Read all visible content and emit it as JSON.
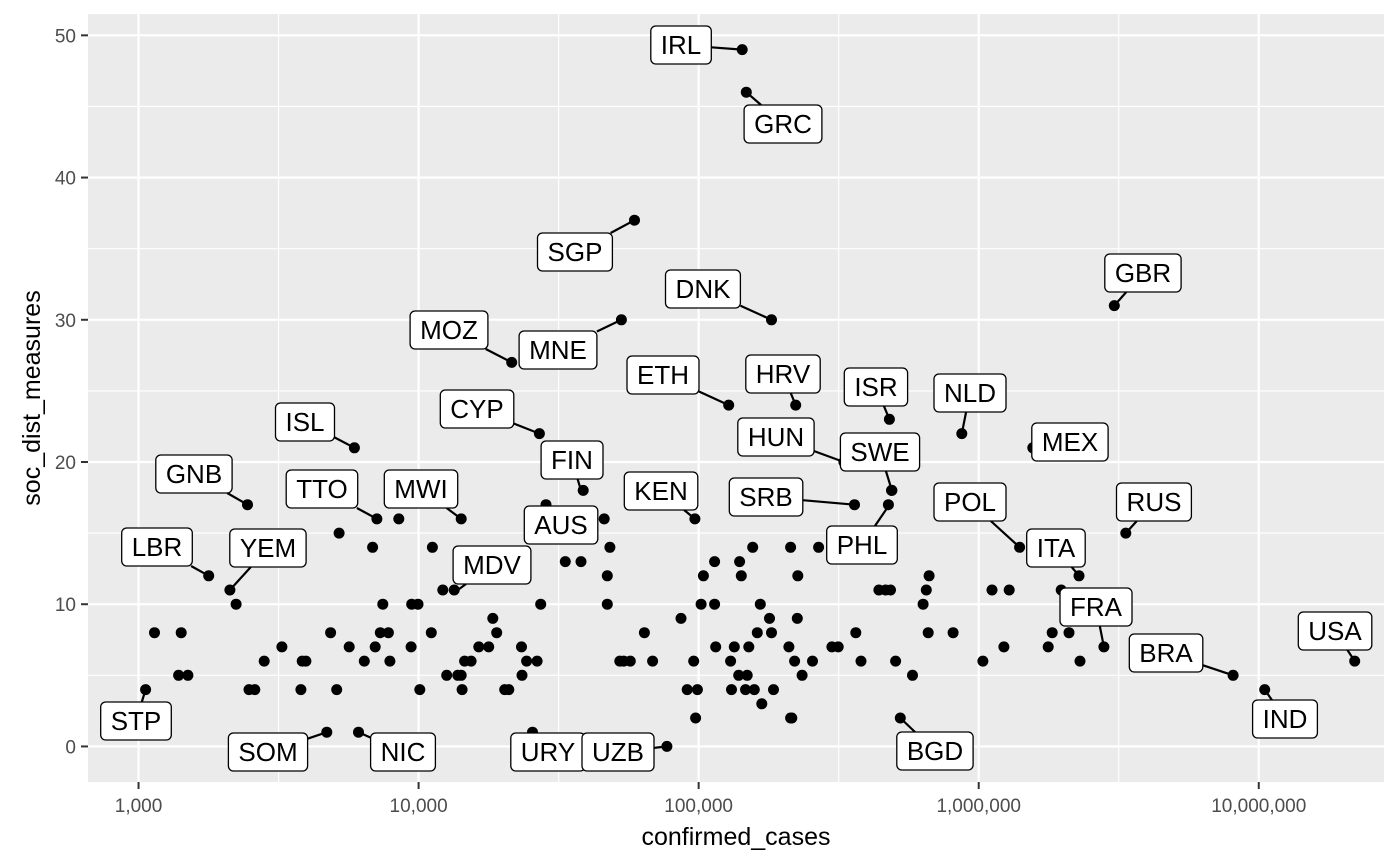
{
  "chart_data": {
    "type": "scatter",
    "xlabel": "confirmed_cases",
    "ylabel": "soc_dist_measures",
    "x_scale": "log10",
    "xlim": [
      660,
      28000000
    ],
    "ylim": [
      -2.5,
      51.5
    ],
    "x_ticks": [
      1000,
      10000,
      100000,
      1000000,
      10000000
    ],
    "x_tick_labels": [
      "1,000",
      "10,000",
      "100,000",
      "1,000,000",
      "10,000,000"
    ],
    "y_ticks": [
      0,
      10,
      20,
      30,
      40,
      50
    ],
    "y_tick_labels": [
      "0",
      "10",
      "20",
      "30",
      "40",
      "50"
    ],
    "grid": true,
    "colors": {
      "panel": "#ebebeb",
      "grid": "#ffffff",
      "point": "#000000",
      "label_border": "#000000",
      "label_fill": "#ffffff",
      "tick_text": "#4d4d4d"
    },
    "labels": [
      {
        "text": "IRL",
        "x": 143000,
        "y": 49.0
      },
      {
        "text": "GRC",
        "x": 148000,
        "y": 46.0
      },
      {
        "text": "SGP",
        "x": 59000,
        "y": 37.0
      },
      {
        "text": "GBR",
        "x": 3050000,
        "y": 31.0
      },
      {
        "text": "DNK",
        "x": 182000,
        "y": 30.0
      },
      {
        "text": "MNE",
        "x": 53000,
        "y": 30.0
      },
      {
        "text": "MOZ",
        "x": 21500,
        "y": 27.0
      },
      {
        "text": "ETH",
        "x": 128000,
        "y": 24.0
      },
      {
        "text": "HRV",
        "x": 222000,
        "y": 24.0
      },
      {
        "text": "ISR",
        "x": 480000,
        "y": 23.0
      },
      {
        "text": "NLD",
        "x": 870000,
        "y": 22.0
      },
      {
        "text": "CYP",
        "x": 27000,
        "y": 22.0
      },
      {
        "text": "ISL",
        "x": 5900,
        "y": 21.0
      },
      {
        "text": "MEX",
        "x": 1560000,
        "y": 21.0
      },
      {
        "text": "HUN",
        "x": 330000,
        "y": 20.0
      },
      {
        "text": "SWE",
        "x": 490000,
        "y": 18.0
      },
      {
        "text": "FIN",
        "x": 38000,
        "y": 18.0
      },
      {
        "text": "GNB",
        "x": 2450,
        "y": 17.0
      },
      {
        "text": "SRB",
        "x": 360000,
        "y": 17.0
      },
      {
        "text": "KEN",
        "x": 97000,
        "y": 16.0
      },
      {
        "text": "TTO",
        "x": 7100,
        "y": 16.0
      },
      {
        "text": "MWI",
        "x": 14200,
        "y": 16.0
      },
      {
        "text": "AUS",
        "x": 28500,
        "y": 17.0
      },
      {
        "text": "RUS",
        "x": 3350000,
        "y": 15.0
      },
      {
        "text": "POL",
        "x": 1400000,
        "y": 14.0
      },
      {
        "text": "PHL",
        "x": 480000,
        "y": 17.0
      },
      {
        "text": "MDV",
        "x": 13800,
        "y": 11.0
      },
      {
        "text": "ITA",
        "x": 2280000,
        "y": 12.0
      },
      {
        "text": "LBR",
        "x": 1780,
        "y": 12.0
      },
      {
        "text": "YEM",
        "x": 2120,
        "y": 11.0
      },
      {
        "text": "FRA",
        "x": 2800000,
        "y": 7.0
      },
      {
        "text": "USA",
        "x": 22000000,
        "y": 6.0
      },
      {
        "text": "BRA",
        "x": 8100000,
        "y": 5.0
      },
      {
        "text": "IND",
        "x": 10500000,
        "y": 4.0
      },
      {
        "text": "STP",
        "x": 1060,
        "y": 4.0
      },
      {
        "text": "BGD",
        "x": 525000,
        "y": 2.0
      },
      {
        "text": "SOM",
        "x": 4700,
        "y": 1.0
      },
      {
        "text": "NIC",
        "x": 6100,
        "y": 1.0
      },
      {
        "text": "URY",
        "x": 25500,
        "y": 1.0
      },
      {
        "text": "UZB",
        "x": 77000,
        "y": 0.0
      }
    ],
    "points": [
      [
        1060,
        4
      ],
      [
        1140,
        8
      ],
      [
        1390,
        5
      ],
      [
        1420,
        8
      ],
      [
        1500,
        5
      ],
      [
        1780,
        12
      ],
      [
        2120,
        11
      ],
      [
        2230,
        10
      ],
      [
        2450,
        17
      ],
      [
        2480,
        4
      ],
      [
        2600,
        4
      ],
      [
        2810,
        6
      ],
      [
        3250,
        7
      ],
      [
        3800,
        4
      ],
      [
        3840,
        6
      ],
      [
        3960,
        6
      ],
      [
        4700,
        1
      ],
      [
        4850,
        8
      ],
      [
        5100,
        4
      ],
      [
        5200,
        15
      ],
      [
        5650,
        7
      ],
      [
        5900,
        21
      ],
      [
        6100,
        1
      ],
      [
        6400,
        6
      ],
      [
        6850,
        14
      ],
      [
        7100,
        16
      ],
      [
        7000,
        7
      ],
      [
        7450,
        10
      ],
      [
        7800,
        8
      ],
      [
        7900,
        6
      ],
      [
        7300,
        8
      ],
      [
        8500,
        16
      ],
      [
        9450,
        10
      ],
      [
        9400,
        7
      ],
      [
        9950,
        10
      ],
      [
        10100,
        4
      ],
      [
        11200,
        14
      ],
      [
        11100,
        8
      ],
      [
        12600,
        5
      ],
      [
        12200,
        11
      ],
      [
        13400,
        11
      ],
      [
        13800,
        5
      ],
      [
        14200,
        5
      ],
      [
        14200,
        16
      ],
      [
        14300,
        4
      ],
      [
        14600,
        6
      ],
      [
        15400,
        6
      ],
      [
        16400,
        7
      ],
      [
        17800,
        7
      ],
      [
        18400,
        9
      ],
      [
        19000,
        8
      ],
      [
        20300,
        4
      ],
      [
        21500,
        27
      ],
      [
        21000,
        4
      ],
      [
        23300,
        7
      ],
      [
        23400,
        5
      ],
      [
        24300,
        6
      ],
      [
        25500,
        1
      ],
      [
        26500,
        6
      ],
      [
        27000,
        22
      ],
      [
        27300,
        10
      ],
      [
        28500,
        17
      ],
      [
        33400,
        13
      ],
      [
        38000,
        13
      ],
      [
        38700,
        18
      ],
      [
        46000,
        16
      ],
      [
        47200,
        10
      ],
      [
        47200,
        12
      ],
      [
        48200,
        14
      ],
      [
        52300,
        6
      ],
      [
        53000,
        30
      ],
      [
        54000,
        6
      ],
      [
        57000,
        6
      ],
      [
        59000,
        37
      ],
      [
        64000,
        8
      ],
      [
        68500,
        6
      ],
      [
        77000,
        0
      ],
      [
        86500,
        9
      ],
      [
        91000,
        4
      ],
      [
        96000,
        6
      ],
      [
        97000,
        16
      ],
      [
        97500,
        2
      ],
      [
        99000,
        4
      ],
      [
        102000,
        10
      ],
      [
        104000,
        12
      ],
      [
        114000,
        10
      ],
      [
        114000,
        13
      ],
      [
        115000,
        7
      ],
      [
        128000,
        24
      ],
      [
        130000,
        6
      ],
      [
        131000,
        4
      ],
      [
        134000,
        7
      ],
      [
        139000,
        5
      ],
      [
        140000,
        13
      ],
      [
        142000,
        12
      ],
      [
        143000,
        49
      ],
      [
        147000,
        4
      ],
      [
        148000,
        46
      ],
      [
        149000,
        5
      ],
      [
        151000,
        7
      ],
      [
        156000,
        14
      ],
      [
        158000,
        4
      ],
      [
        162000,
        8
      ],
      [
        166000,
        10
      ],
      [
        168000,
        3
      ],
      [
        179000,
        9
      ],
      [
        182000,
        30
      ],
      [
        185000,
        4
      ],
      [
        182000,
        8
      ],
      [
        210000,
        7
      ],
      [
        213000,
        2
      ],
      [
        213000,
        14
      ],
      [
        215000,
        2
      ],
      [
        220000,
        6
      ],
      [
        222000,
        24
      ],
      [
        225000,
        9
      ],
      [
        226000,
        12
      ],
      [
        234000,
        5
      ],
      [
        255000,
        6
      ],
      [
        268000,
        14
      ],
      [
        299000,
        7
      ],
      [
        315000,
        7
      ],
      [
        330000,
        20
      ],
      [
        360000,
        17
      ],
      [
        364000,
        8
      ],
      [
        380000,
        6
      ],
      [
        440000,
        11
      ],
      [
        465000,
        11
      ],
      [
        476000,
        17
      ],
      [
        480000,
        23
      ],
      [
        484000,
        11
      ],
      [
        488000,
        18
      ],
      [
        490000,
        18
      ],
      [
        505000,
        6
      ],
      [
        525000,
        2
      ],
      [
        580000,
        5
      ],
      [
        633000,
        10
      ],
      [
        650000,
        11
      ],
      [
        660000,
        8
      ],
      [
        665000,
        12
      ],
      [
        810000,
        8
      ],
      [
        870000,
        22
      ],
      [
        1035000,
        6
      ],
      [
        1115000,
        11
      ],
      [
        1230000,
        7
      ],
      [
        1285000,
        11
      ],
      [
        1400000,
        14
      ],
      [
        1560000,
        21
      ],
      [
        1770000,
        7
      ],
      [
        1830000,
        8
      ],
      [
        1970000,
        11
      ],
      [
        2100000,
        8
      ],
      [
        2280000,
        12
      ],
      [
        2300000,
        6
      ],
      [
        2800000,
        7
      ],
      [
        3050000,
        31
      ],
      [
        3350000,
        15
      ],
      [
        8100000,
        5
      ],
      [
        10500000,
        4
      ],
      [
        22000000,
        6
      ]
    ]
  }
}
